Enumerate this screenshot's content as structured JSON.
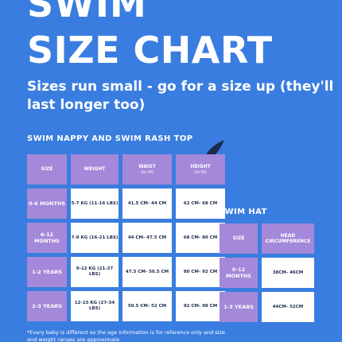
{
  "title": {
    "line1": "SWIM",
    "line2": "SIZE CHART"
  },
  "subtitle": "Sizes run small - go for a size up (they'll last longer too)",
  "main_table": {
    "label": "SWIM NAPPY AND SWIM RASH TOP",
    "headers": [
      {
        "text": "SIZE",
        "sub": ""
      },
      {
        "text": "WEIGHT",
        "sub": ""
      },
      {
        "text": "WAIST",
        "sub": "(to fit)"
      },
      {
        "text": "HEIGHT",
        "sub": "(to fit)"
      }
    ],
    "rows": [
      [
        "0-6 MONTHS",
        "5-7 KG (11-16 LBS)",
        "41.5 CM- 44 CM",
        "62 CM- 68 CM"
      ],
      [
        "6-12 MONTHS",
        "7-9 KG (16-21 LBS)",
        "44 CM- 47.5 CM",
        "68 CM- 80 CM"
      ],
      [
        "1-2 YEARS",
        "9-12 KG (21-27 LBS)",
        "47.5 CM- 50.5 CM",
        "80 CM- 92 CM"
      ],
      [
        "2-3 YEARS",
        "12-15 KG (27-34 LBS)",
        "50.5 CM- 52 CM",
        "92 CM- 98 CM"
      ]
    ]
  },
  "hat_table": {
    "label": "SWIM HAT",
    "headers": [
      "SIZE",
      "HEAD CIRCUMFERENCE"
    ],
    "rows": [
      [
        "0-12 MONTHS",
        "38CM- 46CM"
      ],
      [
        "1-3 YEARS",
        "44CM- 52CM"
      ]
    ]
  },
  "footnote": "*Every baby is different so the age information is for reference only and size and weight ranges are approximate",
  "colors": {
    "background": "#3a7de0",
    "header_cell": "#a488d9",
    "value_cell": "#ffffff",
    "splash": "#1b2a4e"
  },
  "icons": {
    "decoration": "splash-icon"
  }
}
